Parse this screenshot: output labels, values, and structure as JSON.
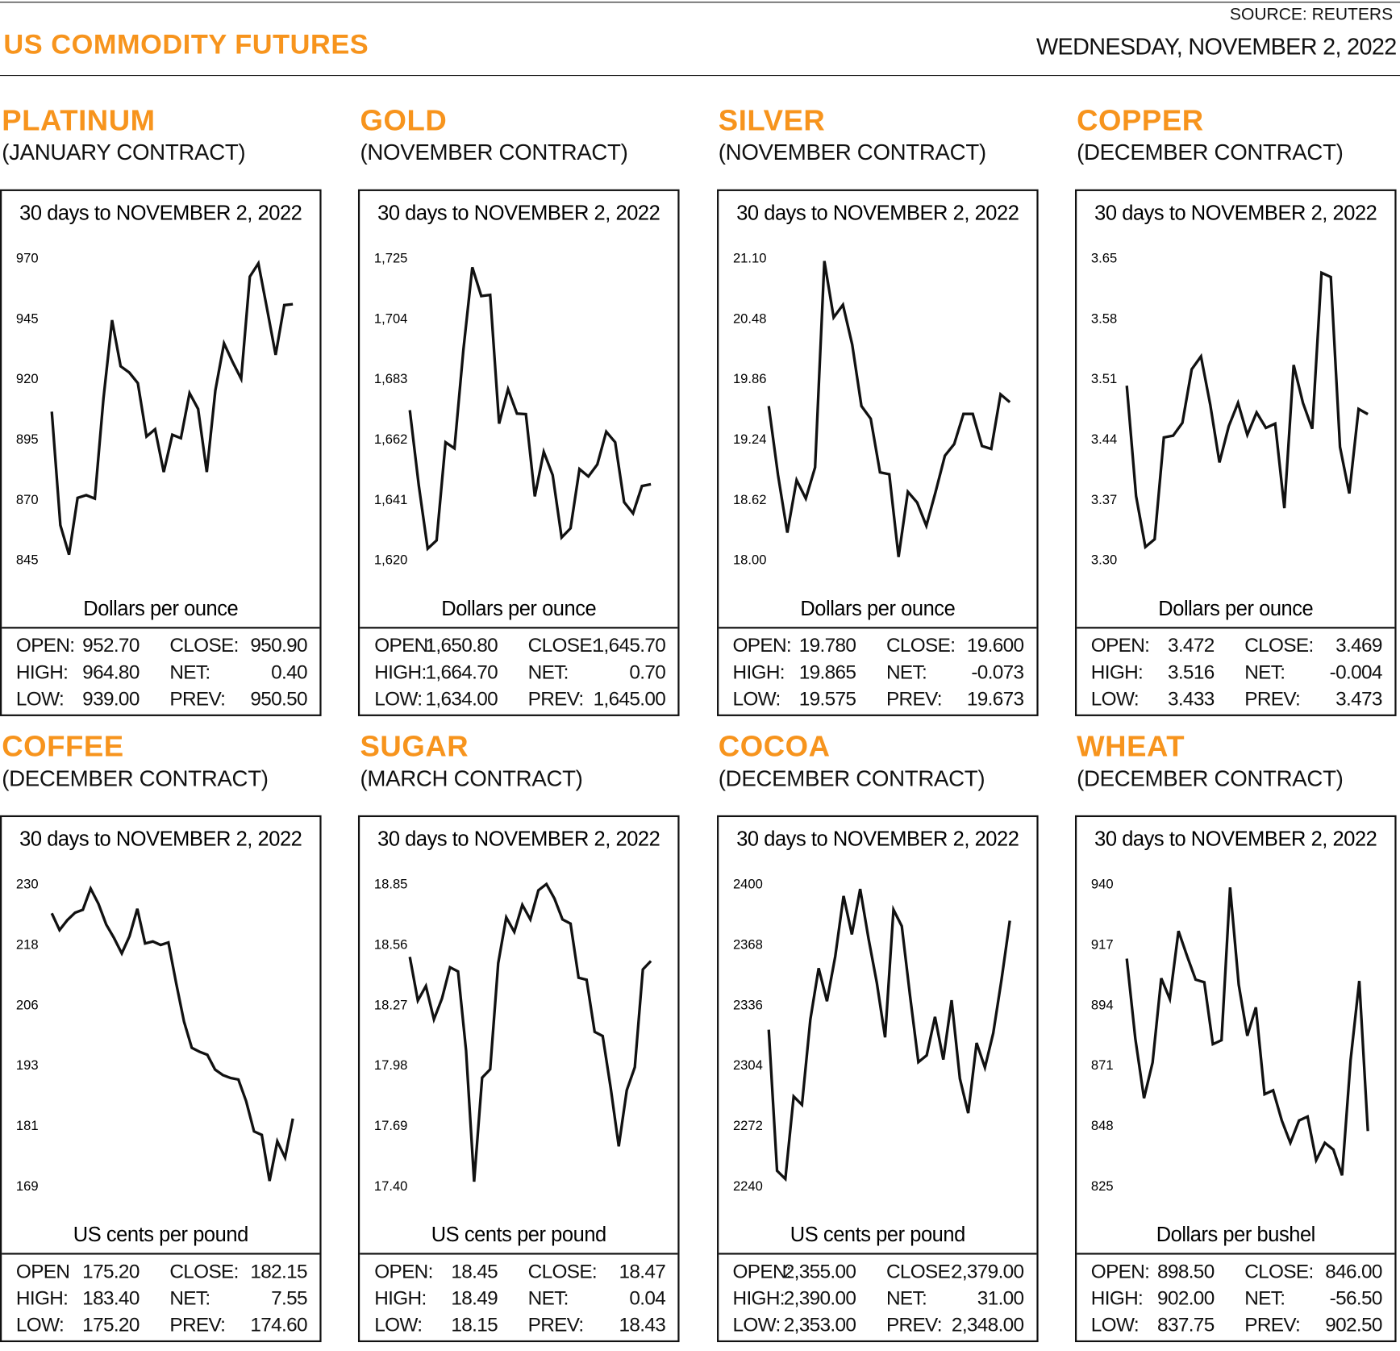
{
  "header": {
    "title": "US COMMODITY FUTURES",
    "source": "SOURCE: REUTERS",
    "date": "WEDNESDAY, NOVEMBER 2, 2022"
  },
  "colors": {
    "accent": "#F7941D",
    "line": "#111111"
  },
  "panels": [
    {
      "name": "PLATINUM",
      "contract": "(JANUARY CONTRACT)",
      "stats": [
        [
          "OPEN:",
          "952.70",
          "CLOSE:",
          "950.90"
        ],
        [
          "HIGH:",
          "964.80",
          "NET:",
          "0.40"
        ],
        [
          "LOW:",
          "939.00",
          "PREV:",
          "950.50"
        ]
      ]
    },
    {
      "name": "GOLD",
      "contract": "(NOVEMBER CONTRACT)",
      "stats": [
        [
          "OPEN:",
          "1,650.80",
          "CLOSE:",
          "1,645.70"
        ],
        [
          "HIGH:",
          "1,664.70",
          "NET:",
          "0.70"
        ],
        [
          "LOW:",
          "1,634.00",
          "PREV:",
          "1,645.00"
        ]
      ]
    },
    {
      "name": "SILVER",
      "contract": "(NOVEMBER CONTRACT)",
      "stats": [
        [
          "OPEN:",
          "19.780",
          "CLOSE:",
          "19.600"
        ],
        [
          "HIGH:",
          "19.865",
          "NET:",
          "-0.073"
        ],
        [
          "LOW:",
          "19.575",
          "PREV:",
          "19.673"
        ]
      ]
    },
    {
      "name": "COPPER",
      "contract": "(DECEMBER CONTRACT)",
      "stats": [
        [
          "OPEN:",
          "3.472",
          "CLOSE:",
          "3.469"
        ],
        [
          "HIGH:",
          "3.516",
          "NET:",
          "-0.004"
        ],
        [
          "LOW:",
          "3.433",
          "PREV:",
          "3.473"
        ]
      ]
    },
    {
      "name": "COFFEE",
      "contract": "(DECEMBER CONTRACT)",
      "stats": [
        [
          "OPEN",
          "175.20",
          "CLOSE:",
          "182.15"
        ],
        [
          "HIGH:",
          "183.40",
          "NET:",
          "7.55"
        ],
        [
          "LOW:",
          "175.20",
          "PREV:",
          "174.60"
        ]
      ]
    },
    {
      "name": "SUGAR",
      "contract": "(MARCH CONTRACT)",
      "stats": [
        [
          "OPEN:",
          "18.45",
          "CLOSE:",
          "18.47"
        ],
        [
          "HIGH:",
          "18.49",
          "NET:",
          "0.04"
        ],
        [
          "LOW:",
          "18.15",
          "PREV:",
          "18.43"
        ]
      ]
    },
    {
      "name": "COCOA",
      "contract": "(DECEMBER CONTRACT)",
      "stats": [
        [
          "OPEN:",
          "2,355.00",
          "CLOSE:",
          "2,379.00"
        ],
        [
          "HIGH:",
          "2,390.00",
          "NET:",
          "31.00"
        ],
        [
          "LOW:",
          "2,353.00",
          "PREV:",
          "2,348.00"
        ]
      ]
    },
    {
      "name": "WHEAT",
      "contract": "(DECEMBER CONTRACT)",
      "stats": [
        [
          "OPEN:",
          "898.50",
          "CLOSE:",
          "846.00"
        ],
        [
          "HIGH:",
          "902.00",
          "NET:",
          "-56.50"
        ],
        [
          "LOW:",
          "837.75",
          "PREV:",
          "902.50"
        ]
      ]
    }
  ],
  "chart_data": [
    {
      "type": "line",
      "title": "30 days to NOVEMBER 2, 2022",
      "ylabel": "Dollars per ounce",
      "yticks": [
        "970",
        "945",
        "920",
        "895",
        "870",
        "845"
      ],
      "ylim": [
        845,
        970
      ],
      "grid": false,
      "values": [
        906.4,
        859.4,
        847.2,
        870.7,
        871.8,
        870.4,
        911.9,
        944.3,
        925.2,
        922.6,
        918.2,
        896.1,
        899.1,
        881.4,
        896.8,
        895.4,
        914.1,
        907.5,
        881.4,
        915.2,
        934.7,
        927.0,
        920.0,
        962.3,
        967.8,
        949.0,
        929.9,
        950.5,
        950.9
      ]
    },
    {
      "type": "line",
      "title": "30 days to NOVEMBER 2, 2022",
      "ylabel": "Dollars per ounce",
      "yticks": [
        "1,725",
        "1,704",
        "1,683",
        "1,662",
        "1,641",
        "1,620"
      ],
      "ylim": [
        1620,
        1725
      ],
      "grid": false,
      "values": [
        1672.1,
        1646.0,
        1623.9,
        1626.8,
        1660.9,
        1658.8,
        1693.1,
        1721.8,
        1711.8,
        1712.2,
        1667.4,
        1679.4,
        1670.9,
        1670.7,
        1642.1,
        1657.6,
        1649.5,
        1627.8,
        1631.0,
        1651.6,
        1649.0,
        1653.2,
        1664.6,
        1660.9,
        1640.1,
        1636.2,
        1645.7,
        1646.3
      ]
    },
    {
      "type": "line",
      "title": "30 days to NOVEMBER 2, 2022",
      "ylabel": "Dollars per ounce",
      "yticks": [
        "21.10",
        "20.48",
        "19.86",
        "19.24",
        "18.62",
        "18.00"
      ],
      "ylim": [
        18.0,
        21.1
      ],
      "grid": false,
      "values": [
        19.58,
        18.87,
        18.28,
        18.82,
        18.63,
        18.95,
        21.07,
        20.49,
        20.62,
        20.21,
        19.58,
        19.45,
        18.9,
        18.88,
        18.03,
        18.7,
        18.59,
        18.35,
        18.7,
        19.07,
        19.19,
        19.5,
        19.5,
        19.17,
        19.14,
        19.7,
        19.62
      ]
    },
    {
      "type": "line",
      "title": "30 days to NOVEMBER 2, 2022",
      "ylabel": "Dollars per ounce",
      "yticks": [
        "3.65",
        "3.58",
        "3.51",
        "3.44",
        "3.37",
        "3.30"
      ],
      "ylim": [
        3.3,
        3.65
      ],
      "grid": false,
      "values": [
        3.502,
        3.374,
        3.315,
        3.324,
        3.442,
        3.444,
        3.459,
        3.521,
        3.536,
        3.48,
        3.413,
        3.455,
        3.482,
        3.445,
        3.471,
        3.453,
        3.458,
        3.36,
        3.526,
        3.482,
        3.452,
        3.633,
        3.628,
        3.431,
        3.377,
        3.475,
        3.469
      ]
    },
    {
      "type": "line",
      "title": "30 days to NOVEMBER 2, 2022",
      "ylabel": "US cents per pound",
      "yticks": [
        "230",
        "218",
        "206",
        "193",
        "181",
        "169"
      ],
      "ylim": [
        169,
        230
      ],
      "grid": false,
      "values": [
        224.1,
        220.7,
        222.7,
        224.2,
        224.8,
        229.1,
        226.0,
        221.8,
        219.1,
        216.0,
        219.5,
        225.0,
        218.0,
        218.4,
        217.7,
        218.2,
        209.9,
        202.2,
        196.9,
        196.1,
        195.5,
        192.5,
        191.4,
        190.8,
        190.5,
        186.1,
        180.0,
        179.3,
        170.0,
        178.0,
        174.7,
        182.6
      ]
    },
    {
      "type": "line",
      "title": "30 days to NOVEMBER 2, 2022",
      "ylabel": "US cents per pound",
      "yticks": [
        "18.85",
        "18.56",
        "18.27",
        "17.98",
        "17.69",
        "17.40"
      ],
      "ylim": [
        17.4,
        18.85
      ],
      "grid": false,
      "values": [
        18.5,
        18.29,
        18.36,
        18.2,
        18.3,
        18.45,
        18.43,
        18.05,
        17.42,
        17.92,
        17.96,
        18.47,
        18.69,
        18.62,
        18.75,
        18.68,
        18.82,
        18.85,
        18.78,
        18.68,
        18.66,
        18.4,
        18.39,
        18.14,
        18.12,
        17.87,
        17.59,
        17.86,
        17.97,
        18.44,
        18.48
      ]
    },
    {
      "type": "line",
      "title": "30 days to NOVEMBER 2, 2022",
      "ylabel": "US cents per pound",
      "yticks": [
        "2400",
        "2368",
        "2336",
        "2304",
        "2272",
        "2240"
      ],
      "ylim": [
        2240,
        2400
      ],
      "grid": false,
      "values": [
        2322.8,
        2248.0,
        2243.7,
        2287.4,
        2283.0,
        2328.2,
        2355.4,
        2337.9,
        2361.7,
        2393.7,
        2373.3,
        2397.4,
        2371.2,
        2347.8,
        2318.7,
        2386.4,
        2377.7,
        2340.6,
        2305.6,
        2309.2,
        2329.6,
        2307.0,
        2338.4,
        2296.8,
        2278.6,
        2315.8,
        2302.7,
        2320.9,
        2349.3,
        2380.6
      ]
    },
    {
      "type": "line",
      "title": "30 days to NOVEMBER 2, 2022",
      "ylabel": "Dollars per bushel",
      "yticks": [
        "940",
        "917",
        "894",
        "871",
        "848",
        "825"
      ],
      "ylim": [
        825,
        940
      ],
      "grid": false,
      "values": [
        911.6,
        881.0,
        858.4,
        872.0,
        904.1,
        896.2,
        922.1,
        912.6,
        903.6,
        902.6,
        879.0,
        880.5,
        938.7,
        901.6,
        882.2,
        893.0,
        859.9,
        861.4,
        849.9,
        841.4,
        849.9,
        851.4,
        834.8,
        841.4,
        838.8,
        829.0,
        873.0,
        903.1,
        845.9
      ]
    }
  ]
}
